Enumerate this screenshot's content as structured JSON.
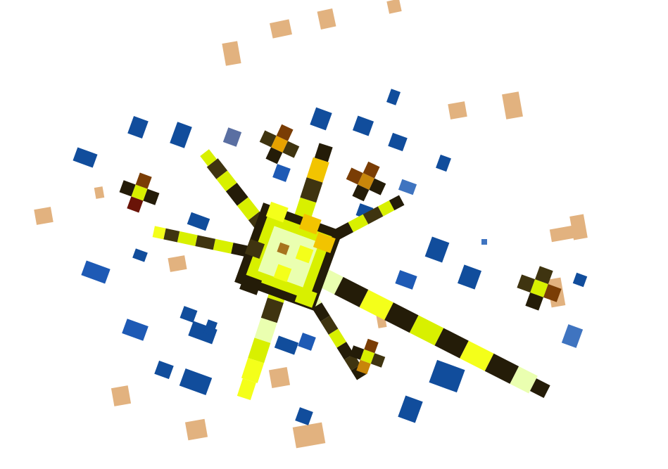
{
  "scene": {
    "description_free": true,
    "palette": {
      "background": "#ffffff",
      "tan": "#e2b27f",
      "blue": "#114d9c",
      "blue_light": "#3f74c0",
      "yellow_bright": "#f4ff1a",
      "yellow": "#d8f000",
      "yellow_pale": "#eaffb0",
      "gold": "#f2c400",
      "dark": "#241c08",
      "dark_olive": "#3f3410",
      "brown": "#7a3d05",
      "amber": "#e6a100",
      "maroon": "#6a1408"
    },
    "objects": [
      {
        "kind": "central-starburst",
        "name": "main-star"
      },
      {
        "kind": "small-star",
        "name": "star-upper-center"
      },
      {
        "kind": "small-star",
        "name": "star-upper-right"
      },
      {
        "kind": "small-star",
        "name": "star-left"
      },
      {
        "kind": "small-star",
        "name": "star-right"
      },
      {
        "kind": "small-star",
        "name": "star-bottom"
      },
      {
        "kind": "scatter",
        "name": "tan-particles"
      },
      {
        "kind": "scatter",
        "name": "blue-particles"
      }
    ]
  }
}
